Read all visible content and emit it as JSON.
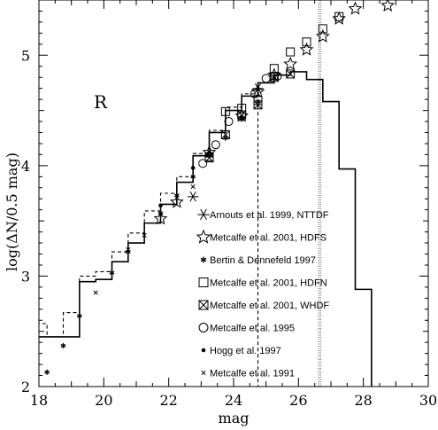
{
  "chart_data": {
    "type": "scatter",
    "title": "",
    "xlabel": "mag",
    "ylabel": "log(ΔN/0.5 mag)",
    "xlim": [
      18,
      30
    ],
    "ylim": [
      2,
      5.5
    ],
    "xticks": [
      "18",
      "20",
      "22",
      "24",
      "26",
      "28",
      "30"
    ],
    "yticks": [
      "2",
      "3",
      "4",
      "5"
    ],
    "grid": false,
    "legend_position": "lower-right",
    "band_label": "R",
    "vertical_line_x": 26.65,
    "histograms": [
      {
        "style": "solid",
        "bins": [
          [
            17.75,
            18.75,
            2.45
          ],
          [
            18.75,
            19.25,
            2.45
          ],
          [
            19.25,
            19.75,
            2.95
          ],
          [
            19.75,
            20.25,
            2.97
          ],
          [
            20.25,
            20.75,
            3.13
          ],
          [
            20.75,
            21.25,
            3.3
          ],
          [
            21.25,
            21.75,
            3.48
          ],
          [
            21.75,
            22.25,
            3.65
          ],
          [
            22.25,
            22.75,
            3.85
          ],
          [
            22.75,
            23.25,
            4.09
          ],
          [
            23.25,
            23.75,
            4.3
          ],
          [
            23.75,
            24.25,
            4.5
          ],
          [
            24.25,
            24.75,
            4.63
          ],
          [
            24.75,
            25.25,
            4.75
          ],
          [
            25.25,
            25.75,
            4.82
          ],
          [
            25.75,
            26.25,
            4.85
          ],
          [
            26.25,
            26.75,
            4.78
          ],
          [
            26.75,
            27.25,
            4.58
          ],
          [
            27.25,
            27.75,
            3.97
          ],
          [
            27.75,
            28.25,
            2.88
          ]
        ]
      },
      {
        "style": "dashed",
        "bins": [
          [
            17.75,
            18.25,
            2.57
          ],
          [
            18.25,
            18.75,
            2.45
          ],
          [
            18.75,
            19.25,
            2.67
          ],
          [
            19.25,
            19.75,
            3.0
          ],
          [
            19.75,
            20.25,
            3.04
          ],
          [
            20.25,
            20.75,
            3.22
          ],
          [
            20.75,
            21.25,
            3.39
          ],
          [
            21.25,
            21.75,
            3.59
          ],
          [
            21.75,
            22.25,
            3.75
          ],
          [
            22.25,
            22.75,
            3.9
          ],
          [
            22.75,
            23.25,
            4.11
          ],
          [
            23.25,
            23.75,
            4.32
          ],
          [
            23.75,
            24.25,
            4.53
          ],
          [
            24.25,
            24.75,
            4.65
          ]
        ]
      }
    ],
    "series": [
      {
        "name": "Arnouts et al. 1999, NTTDF",
        "marker": "tri-star",
        "x": [
          22.75,
          24.75
        ],
        "y": [
          3.72,
          4.7
        ]
      },
      {
        "name": "Metcalfe et al. 2001, HDFS",
        "marker": "star",
        "x": [
          21.75,
          22.25,
          23.25,
          24.25,
          24.75,
          25.25,
          25.75,
          26.25,
          26.75,
          27.25,
          27.75,
          28.75
        ],
        "y": [
          3.52,
          3.67,
          4.12,
          4.45,
          4.67,
          4.82,
          4.92,
          5.05,
          5.17,
          5.33,
          5.42,
          5.45
        ]
      },
      {
        "name": "Bertin & Dennefeld 1997",
        "marker": "asterisk",
        "x": [
          18.25,
          18.75,
          19.25,
          20.25,
          20.75,
          21.75,
          22.25,
          22.75,
          23.25,
          23.75,
          24.25,
          24.75
        ],
        "y": [
          2.13,
          2.37,
          2.64,
          3.03,
          3.22,
          3.57,
          3.73,
          3.9,
          4.09,
          4.25,
          4.42,
          4.58
        ]
      },
      {
        "name": "Metcalfe et al. 2001, HDFN",
        "marker": "square",
        "x": [
          23.25,
          23.75,
          24.25,
          24.75,
          25.25,
          25.75,
          26.25,
          26.75,
          27.25
        ],
        "y": [
          4.08,
          4.49,
          4.52,
          4.59,
          4.88,
          5.03,
          5.12,
          5.24,
          5.35
        ]
      },
      {
        "name": "Metcalfe et al. 2001, WHDF",
        "marker": "bowtie",
        "x": [
          23.25,
          23.75,
          24.25,
          24.75,
          25.25,
          25.75
        ],
        "y": [
          4.07,
          4.28,
          4.46,
          4.55,
          4.8,
          4.83
        ]
      },
      {
        "name": "Metcalfe et al. 1995",
        "marker": "circle",
        "x": [
          23.05,
          23.45,
          23.85,
          24.65,
          25.0,
          25.35
        ],
        "y": [
          4.02,
          4.19,
          4.4,
          4.65,
          4.79,
          4.81
        ]
      },
      {
        "name": "Hogg et al. 1997",
        "marker": "dot",
        "x": [
          21.75,
          22.75,
          23.25,
          24.25,
          25.25
        ],
        "y": [
          3.64,
          3.98,
          4.12,
          4.44,
          4.79
        ]
      },
      {
        "name": "Metcalfe et al. 1991",
        "marker": "cross",
        "x": [
          19.75,
          20.75,
          21.25,
          22.75
        ],
        "y": [
          2.85,
          3.24,
          3.37,
          3.81
        ]
      }
    ]
  }
}
